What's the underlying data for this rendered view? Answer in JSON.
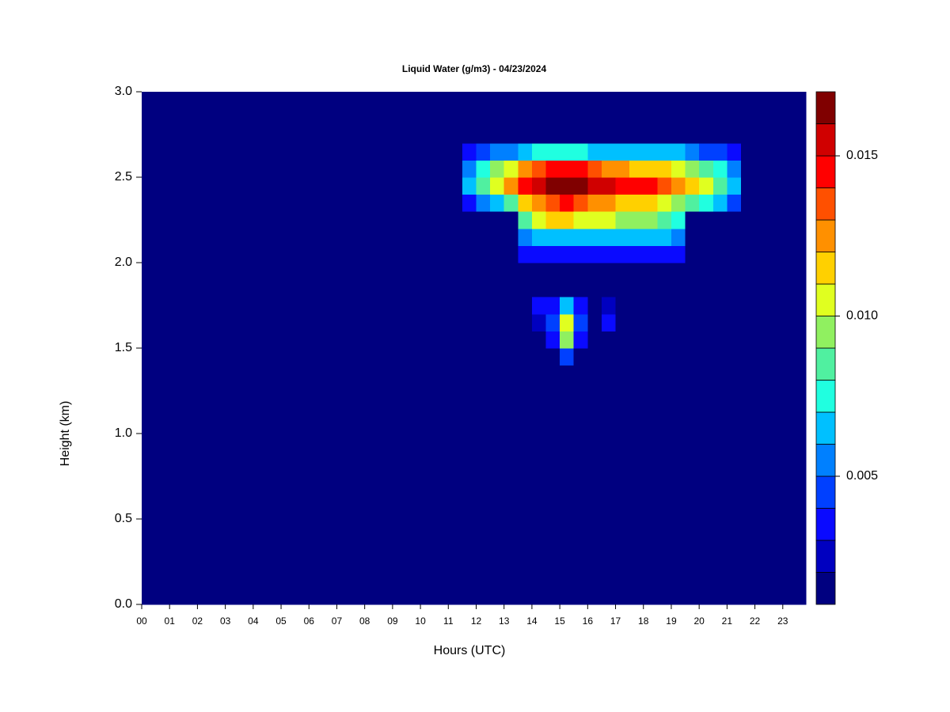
{
  "chart_data": {
    "type": "heatmap",
    "title": "Liquid Water (g/m3) - 04/23/2024",
    "xlabel": "Hours (UTC)",
    "ylabel": "Height (km)",
    "xlim": [
      0,
      23.83
    ],
    "ylim": [
      0,
      3
    ],
    "xticks": [
      {
        "value": 0,
        "label": "00"
      },
      {
        "value": 1,
        "label": "01"
      },
      {
        "value": 2,
        "label": "02"
      },
      {
        "value": 3,
        "label": "03"
      },
      {
        "value": 4,
        "label": "04"
      },
      {
        "value": 5,
        "label": "05"
      },
      {
        "value": 6,
        "label": "06"
      },
      {
        "value": 7,
        "label": "07"
      },
      {
        "value": 8,
        "label": "08"
      },
      {
        "value": 9,
        "label": "09"
      },
      10,
      11,
      12,
      13,
      14,
      15,
      16,
      17,
      18,
      19,
      20,
      21,
      22,
      23
    ],
    "yticks": [
      {
        "value": 0,
        "label": "0.0"
      },
      {
        "value": 0.5,
        "label": "0.5"
      },
      {
        "value": 1,
        "label": "1.0"
      },
      {
        "value": 1.5,
        "label": "1.5"
      },
      {
        "value": 2,
        "label": "2.0"
      },
      {
        "value": 2.5,
        "label": "2.5"
      },
      {
        "value": 3,
        "label": "3.0"
      }
    ],
    "x": [
      0,
      11.5,
      12,
      12.5,
      13,
      13.5,
      14,
      14.5,
      15,
      15.5,
      16,
      16.5,
      17,
      17.5,
      18,
      18.5,
      19,
      19.5,
      20,
      20.5,
      21,
      21.5,
      23.83
    ],
    "y": [
      0,
      1.4,
      1.5,
      1.6,
      1.7,
      1.8,
      2.0,
      2.1,
      2.2,
      2.3,
      2.4,
      2.5,
      2.6,
      2.7,
      3.0
    ],
    "z": [
      [
        0.001,
        0.001,
        0.001,
        0.001,
        0.001,
        0.001,
        0.001,
        0.001,
        0.001,
        0.001,
        0.001,
        0.001,
        0.001,
        0.001,
        0.001,
        0.001,
        0.001,
        0.001,
        0.001,
        0.001,
        0.001,
        0.001
      ],
      [
        0.001,
        0.001,
        0.001,
        0.001,
        0.001,
        0.001,
        0.001,
        0.001,
        0.004,
        0.001,
        0.001,
        0.001,
        0.001,
        0.001,
        0.001,
        0.001,
        0.001,
        0.001,
        0.001,
        0.001,
        0.001,
        0.001
      ],
      [
        0.001,
        0.001,
        0.001,
        0.001,
        0.001,
        0.001,
        0.001,
        0.003,
        0.009,
        0.003,
        0.001,
        0.001,
        0.001,
        0.001,
        0.001,
        0.001,
        0.001,
        0.001,
        0.001,
        0.001,
        0.001,
        0.001
      ],
      [
        0.001,
        0.001,
        0.001,
        0.001,
        0.001,
        0.001,
        0.002,
        0.004,
        0.01,
        0.004,
        0.001,
        0.003,
        0.001,
        0.001,
        0.001,
        0.001,
        0.001,
        0.001,
        0.001,
        0.001,
        0.001,
        0.001
      ],
      [
        0.001,
        0.001,
        0.001,
        0.001,
        0.001,
        0.001,
        0.003,
        0.003,
        0.006,
        0.003,
        0.001,
        0.002,
        0.001,
        0.001,
        0.001,
        0.001,
        0.001,
        0.001,
        0.001,
        0.001,
        0.001,
        0.001
      ],
      [
        0.001,
        0.001,
        0.001,
        0.001,
        0.001,
        0.001,
        0.001,
        0.001,
        0.001,
        0.001,
        0.001,
        0.001,
        0.001,
        0.001,
        0.001,
        0.001,
        0.001,
        0.001,
        0.001,
        0.001,
        0.001,
        0.001
      ],
      [
        0.001,
        0.001,
        0.001,
        0.001,
        0.001,
        0.003,
        0.003,
        0.003,
        0.003,
        0.003,
        0.003,
        0.003,
        0.003,
        0.003,
        0.003,
        0.003,
        0.003,
        0.001,
        0.001,
        0.001,
        0.001,
        0.001
      ],
      [
        0.001,
        0.001,
        0.001,
        0.001,
        0.001,
        0.005,
        0.006,
        0.006,
        0.006,
        0.006,
        0.006,
        0.006,
        0.006,
        0.006,
        0.006,
        0.006,
        0.005,
        0.001,
        0.001,
        0.001,
        0.001,
        0.001
      ],
      [
        0.001,
        0.001,
        0.001,
        0.001,
        0.001,
        0.008,
        0.01,
        0.011,
        0.011,
        0.01,
        0.01,
        0.01,
        0.009,
        0.009,
        0.009,
        0.008,
        0.007,
        0.001,
        0.001,
        0.001,
        0.001,
        0.001
      ],
      [
        0.001,
        0.003,
        0.005,
        0.006,
        0.008,
        0.011,
        0.012,
        0.013,
        0.014,
        0.013,
        0.012,
        0.012,
        0.011,
        0.011,
        0.011,
        0.01,
        0.009,
        0.008,
        0.007,
        0.006,
        0.004,
        0.001
      ],
      [
        0.001,
        0.006,
        0.008,
        0.01,
        0.012,
        0.014,
        0.015,
        0.016,
        0.017,
        0.016,
        0.015,
        0.015,
        0.014,
        0.014,
        0.014,
        0.013,
        0.012,
        0.011,
        0.01,
        0.008,
        0.006,
        0.001
      ],
      [
        0.001,
        0.005,
        0.007,
        0.009,
        0.01,
        0.012,
        0.013,
        0.014,
        0.014,
        0.014,
        0.013,
        0.012,
        0.012,
        0.011,
        0.011,
        0.011,
        0.01,
        0.009,
        0.008,
        0.007,
        0.005,
        0.001
      ],
      [
        0.001,
        0.003,
        0.004,
        0.005,
        0.005,
        0.006,
        0.007,
        0.007,
        0.007,
        0.007,
        0.006,
        0.006,
        0.006,
        0.006,
        0.006,
        0.006,
        0.006,
        0.005,
        0.004,
        0.004,
        0.003,
        0.001
      ],
      [
        0.001,
        0.001,
        0.001,
        0.001,
        0.001,
        0.001,
        0.001,
        0.001,
        0.001,
        0.001,
        0.001,
        0.001,
        0.001,
        0.001,
        0.001,
        0.001,
        0.001,
        0.001,
        0.001,
        0.001,
        0.001,
        0.001
      ]
    ],
    "levels": [
      0.001,
      0.002,
      0.003,
      0.004,
      0.005,
      0.006,
      0.007,
      0.008,
      0.009,
      0.01,
      0.011,
      0.012,
      0.013,
      0.014,
      0.015,
      0.016,
      0.017
    ],
    "colors": [
      "#000080",
      "#0000c0",
      "#0a0aff",
      "#0040ff",
      "#0080ff",
      "#00c0ff",
      "#20ffe0",
      "#50f0a0",
      "#90f060",
      "#e0ff20",
      "#ffd000",
      "#ff9000",
      "#ff5000",
      "#ff0000",
      "#d00000",
      "#800000"
    ],
    "colorbar_ticks": [
      0.005,
      {
        "value": 0.01,
        "label": "0.010"
      },
      0.015
    ]
  }
}
